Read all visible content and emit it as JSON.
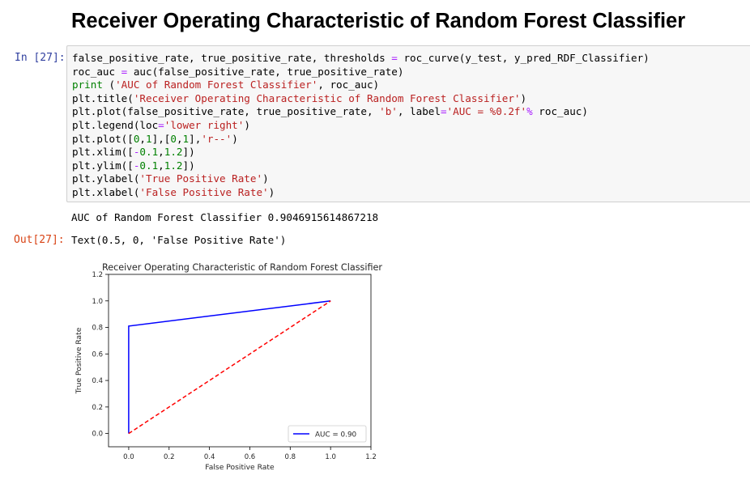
{
  "heading": "Receiver Operating Characteristic of Random Forest Classifier",
  "cell": {
    "in_prompt": "In [27]:",
    "out_prompt": "Out[27]:",
    "code_lines": [
      [
        {
          "t": "false_positive_rate, true_positive_rate, thresholds "
        },
        {
          "t": "=",
          "c": "op"
        },
        {
          "t": " roc_curve(y_test, y_pred_RDF_Classifier)"
        }
      ],
      [
        {
          "t": "roc_auc "
        },
        {
          "t": "=",
          "c": "op"
        },
        {
          "t": " auc(false_positive_rate, true_positive_rate)"
        }
      ],
      [
        {
          "t": "print",
          "c": "kw"
        },
        {
          "t": " ("
        },
        {
          "t": "'AUC of Random Forest Classifier'",
          "c": "str"
        },
        {
          "t": ", roc_auc)"
        }
      ],
      [
        {
          "t": "plt.title("
        },
        {
          "t": "'Receiver Operating Characteristic of Random Forest Classifier'",
          "c": "str"
        },
        {
          "t": ")"
        }
      ],
      [
        {
          "t": "plt.plot(false_positive_rate, true_positive_rate, "
        },
        {
          "t": "'b'",
          "c": "str"
        },
        {
          "t": ", label"
        },
        {
          "t": "=",
          "c": "op"
        },
        {
          "t": "'AUC = %0.2f'",
          "c": "str"
        },
        {
          "t": "%",
          "c": "op"
        },
        {
          "t": " roc_auc)"
        }
      ],
      [
        {
          "t": "plt.legend(loc"
        },
        {
          "t": "=",
          "c": "op"
        },
        {
          "t": "'lower right'",
          "c": "str"
        },
        {
          "t": ")"
        }
      ],
      [
        {
          "t": "plt.plot(["
        },
        {
          "t": "0",
          "c": "num"
        },
        {
          "t": ","
        },
        {
          "t": "1",
          "c": "num"
        },
        {
          "t": "],["
        },
        {
          "t": "0",
          "c": "num"
        },
        {
          "t": ","
        },
        {
          "t": "1",
          "c": "num"
        },
        {
          "t": "],"
        },
        {
          "t": "'r--'",
          "c": "str"
        },
        {
          "t": ")"
        }
      ],
      [
        {
          "t": "plt.xlim(["
        },
        {
          "t": "-",
          "c": "op"
        },
        {
          "t": "0.1",
          "c": "num"
        },
        {
          "t": ","
        },
        {
          "t": "1.2",
          "c": "num"
        },
        {
          "t": "])"
        }
      ],
      [
        {
          "t": "plt.ylim(["
        },
        {
          "t": "-",
          "c": "op"
        },
        {
          "t": "0.1",
          "c": "num"
        },
        {
          "t": ","
        },
        {
          "t": "1.2",
          "c": "num"
        },
        {
          "t": "])"
        }
      ],
      [
        {
          "t": "plt.ylabel("
        },
        {
          "t": "'True Positive Rate'",
          "c": "str"
        },
        {
          "t": ")"
        }
      ],
      [
        {
          "t": "plt.xlabel("
        },
        {
          "t": "'False Positive Rate'",
          "c": "str"
        },
        {
          "t": ")"
        }
      ]
    ],
    "stdout": "AUC of Random Forest Classifier 0.9046915614867218",
    "result": "Text(0.5, 0, 'False Positive Rate')"
  },
  "colors": {
    "roc_line": "#0000ff",
    "diagonal": "#ff0000",
    "string": "#ba2121",
    "number": "#008000",
    "keyword": "#008000",
    "operator": "#aa22ff",
    "in_prompt": "#303f9f",
    "out_prompt": "#d84315"
  },
  "chart_data": {
    "type": "line",
    "title": "Receiver Operating Characteristic of Random Forest Classifier",
    "xlabel": "False Positive Rate",
    "ylabel": "True Positive Rate",
    "xlim": [
      -0.1,
      1.2
    ],
    "ylim": [
      -0.1,
      1.2
    ],
    "xticks": [
      0.0,
      0.2,
      0.4,
      0.6,
      0.8,
      1.0,
      1.2
    ],
    "yticks": [
      0.0,
      0.2,
      0.4,
      0.6,
      0.8,
      1.0,
      1.2
    ],
    "grid": false,
    "legend": "lower right",
    "series": [
      {
        "name": "AUC = 0.90",
        "style": "solid",
        "color": "#0000ff",
        "x": [
          0.0,
          0.0,
          1.0
        ],
        "y": [
          0.0,
          0.81,
          1.0
        ]
      },
      {
        "style": "dashed",
        "color": "#ff0000",
        "x": [
          0,
          1
        ],
        "y": [
          0,
          1
        ]
      }
    ]
  }
}
